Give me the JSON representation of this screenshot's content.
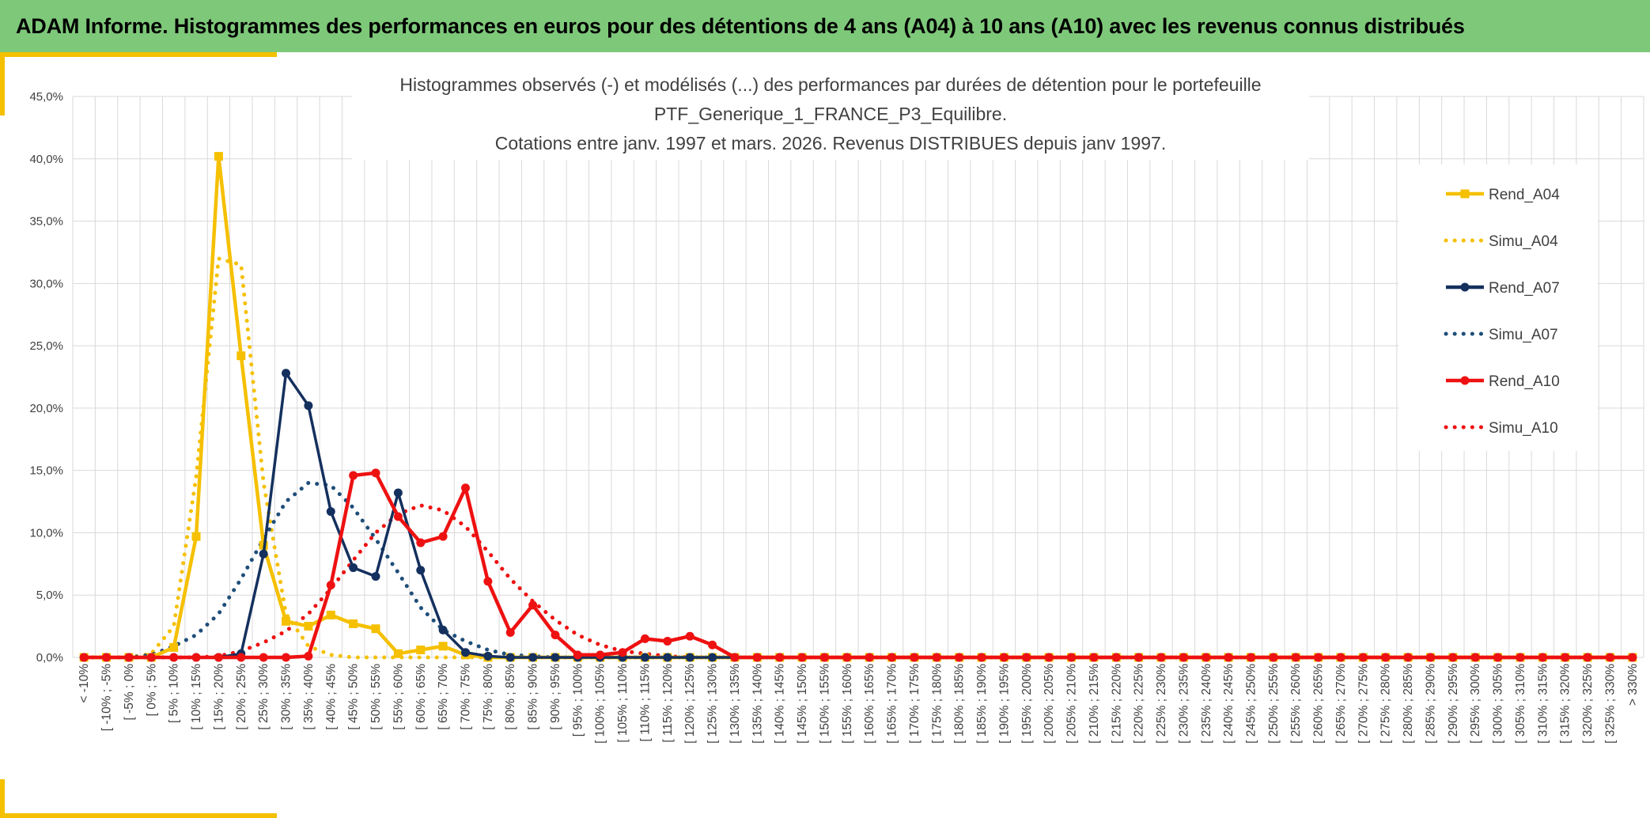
{
  "banner": {
    "title": "ADAM Informe. Histogrammes des performances en euros pour des détentions de 4 ans (A04) à 10 ans (A10) avec les revenus connus distribués"
  },
  "chart_data": {
    "type": "line",
    "title_lines": [
      "Histogrammes observés (-) et modélisés (...) des performances par durées de détention pour le portefeuille",
      "PTF_Generique_1_FRANCE_P3_Equilibre.",
      "Cotations entre janv. 1997 et mars. 2026. Revenus DISTRIBUES depuis janv 1997."
    ],
    "ylim": [
      0,
      45
    ],
    "y_ticks": [
      "0,0%",
      "5,0%",
      "10,0%",
      "15,0%",
      "20,0%",
      "25,0%",
      "30,0%",
      "35,0%",
      "40,0%",
      "45,0%"
    ],
    "grid": true,
    "legend_position": "right",
    "categories": [
      "< -10%",
      "[ -10% ; -5%",
      "[ -5% ; 0%",
      "[ 0% ; 5%",
      "[ 5% ; 10%",
      "[ 10% ; 15%",
      "[ 15% ; 20%",
      "[ 20% ; 25%",
      "[ 25% ; 30%",
      "[ 30% ; 35%",
      "[ 35% ; 40%",
      "[ 40% ; 45%",
      "[ 45% ; 50%",
      "[ 50% ; 55%",
      "[ 55% ; 60%",
      "[ 60% ; 65%",
      "[ 65% ; 70%",
      "[ 70% ; 75%",
      "[ 75% ; 80%",
      "[ 80% ; 85%",
      "[ 85% ; 90%",
      "[ 90% ; 95%",
      "[ 95% ; 100%",
      "[ 100% ; 105%",
      "[ 105% ; 110%",
      "[ 110% ; 115%",
      "[ 115% ; 120%",
      "[ 120% ; 125%",
      "[ 125% ; 130%",
      "[ 130% ; 135%",
      "[ 135% ; 140%",
      "[ 140% ; 145%",
      "[ 145% ; 150%",
      "[ 150% ; 155%",
      "[ 155% ; 160%",
      "[ 160% ; 165%",
      "[ 165% ; 170%",
      "[ 170% ; 175%",
      "[ 175% ; 180%",
      "[ 180% ; 185%",
      "[ 185% ; 190%",
      "[ 190% ; 195%",
      "[ 195% ; 200%",
      "[ 200% ; 205%",
      "[ 205% ; 210%",
      "[ 210% ; 215%",
      "[ 215% ; 220%",
      "[ 220% ; 225%",
      "[ 225% ; 230%",
      "[ 230% ; 235%",
      "[ 235% ; 240%",
      "[ 240% ; 245%",
      "[ 245% ; 250%",
      "[ 250% ; 255%",
      "[ 255% ; 260%",
      "[ 260% ; 265%",
      "[ 265% ; 270%",
      "[ 270% ; 275%",
      "[ 275% ; 280%",
      "[ 280% ; 285%",
      "[ 285% ; 290%",
      "[ 290% ; 295%",
      "[ 295% ; 300%",
      "[ 300% ; 305%",
      "[ 305% ; 310%",
      "[ 310% ; 315%",
      "[ 315% ; 320%",
      "[ 320% ; 325%",
      "[ 325% ; 330%",
      "> 330%"
    ],
    "series": [
      {
        "name": "Rend_A04",
        "color": "#f5c000",
        "style": "solid",
        "marker": "square",
        "values": [
          0,
          0,
          0,
          0,
          0.8,
          9.7,
          40.2,
          24.2,
          9.0,
          2.9,
          2.5,
          3.4,
          2.7,
          2.3,
          0.3,
          0.6,
          0.9,
          0.2,
          0,
          0,
          0,
          0,
          0,
          0,
          0,
          0,
          0,
          0,
          0,
          0,
          0,
          0,
          0,
          0,
          0,
          0,
          0,
          0,
          0,
          0,
          0,
          0,
          0,
          0,
          0,
          0,
          0,
          0,
          0,
          0,
          0,
          0,
          0,
          0,
          0,
          0,
          0,
          0,
          0,
          0,
          0,
          0,
          0,
          0,
          0,
          0,
          0,
          0,
          0,
          0
        ]
      },
      {
        "name": "Simu_A04",
        "color": "#f5c000",
        "style": "dotted",
        "marker": "none",
        "values": [
          0,
          0,
          0,
          0.3,
          2.5,
          14.5,
          32.0,
          31.5,
          14.0,
          3.5,
          0.9,
          0.2,
          0,
          0,
          0,
          0,
          0,
          0,
          0,
          0,
          0,
          0,
          0,
          0,
          0,
          0,
          0,
          0,
          0,
          0,
          0,
          0,
          0,
          0,
          0,
          0,
          0,
          0,
          0,
          0,
          0,
          0,
          0,
          0,
          0,
          0,
          0,
          0,
          0,
          0,
          0,
          0,
          0,
          0,
          0,
          0,
          0,
          0,
          0,
          0,
          0,
          0,
          0,
          0,
          0,
          0,
          0,
          0,
          0,
          0
        ]
      },
      {
        "name": "Rend_A07",
        "color": "#14305e",
        "style": "solid",
        "marker": "circle",
        "values": [
          0,
          0,
          0,
          0,
          0,
          0,
          0,
          0.3,
          8.3,
          22.8,
          20.2,
          11.7,
          7.2,
          6.5,
          13.2,
          7.0,
          2.2,
          0.4,
          0.1,
          0,
          0,
          0,
          0,
          0,
          0,
          0,
          0,
          0,
          0,
          0,
          0,
          0,
          0,
          0,
          0,
          0,
          0,
          0,
          0,
          0,
          0,
          0,
          0,
          0,
          0,
          0,
          0,
          0,
          0,
          0,
          0,
          0,
          0,
          0,
          0,
          0,
          0,
          0,
          0,
          0,
          0,
          0,
          0,
          0,
          0,
          0,
          0,
          0,
          0,
          0
        ]
      },
      {
        "name": "Simu_A07",
        "color": "#1f4e79",
        "style": "dotted",
        "marker": "none",
        "values": [
          0,
          0,
          0,
          0.2,
          0.9,
          1.8,
          3.5,
          6.3,
          9.5,
          12.5,
          14.0,
          13.8,
          12.0,
          9.5,
          6.8,
          4.0,
          2.2,
          1.3,
          0.6,
          0.2,
          0.1,
          0,
          0,
          0,
          0,
          0,
          0,
          0,
          0,
          0,
          0,
          0,
          0,
          0,
          0,
          0,
          0,
          0,
          0,
          0,
          0,
          0,
          0,
          0,
          0,
          0,
          0,
          0,
          0,
          0,
          0,
          0,
          0,
          0,
          0,
          0,
          0,
          0,
          0,
          0,
          0,
          0,
          0,
          0,
          0,
          0,
          0,
          0,
          0,
          0
        ]
      },
      {
        "name": "Rend_A10",
        "color": "#ee1111",
        "style": "solid",
        "marker": "circle",
        "values": [
          0,
          0,
          0,
          0,
          0,
          0,
          0,
          0,
          0,
          0,
          0.1,
          5.8,
          14.6,
          14.8,
          11.3,
          9.2,
          9.7,
          13.6,
          6.1,
          2.0,
          4.2,
          1.8,
          0.2,
          0.2,
          0.4,
          1.5,
          1.3,
          1.7,
          1.0,
          0,
          0,
          0,
          0,
          0,
          0,
          0,
          0,
          0,
          0,
          0,
          0,
          0,
          0,
          0,
          0,
          0,
          0,
          0,
          0,
          0,
          0,
          0,
          0,
          0,
          0,
          0,
          0,
          0,
          0,
          0,
          0,
          0,
          0,
          0,
          0,
          0,
          0,
          0,
          0,
          0
        ]
      },
      {
        "name": "Simu_A10",
        "color": "#ee1111",
        "style": "dotted",
        "marker": "none",
        "values": [
          0,
          0,
          0,
          0,
          0,
          0,
          0.1,
          0.5,
          1.2,
          2.1,
          3.5,
          5.5,
          7.8,
          10.0,
          11.5,
          12.2,
          11.8,
          10.5,
          8.5,
          6.3,
          4.5,
          3.0,
          1.8,
          1.0,
          0.5,
          0.3,
          0.1,
          0,
          0,
          0,
          0,
          0,
          0,
          0,
          0,
          0,
          0,
          0,
          0,
          0,
          0,
          0,
          0,
          0,
          0,
          0,
          0,
          0,
          0,
          0,
          0,
          0,
          0,
          0,
          0,
          0,
          0,
          0,
          0,
          0,
          0,
          0,
          0,
          0,
          0,
          0,
          0,
          0,
          0,
          0
        ]
      }
    ]
  }
}
